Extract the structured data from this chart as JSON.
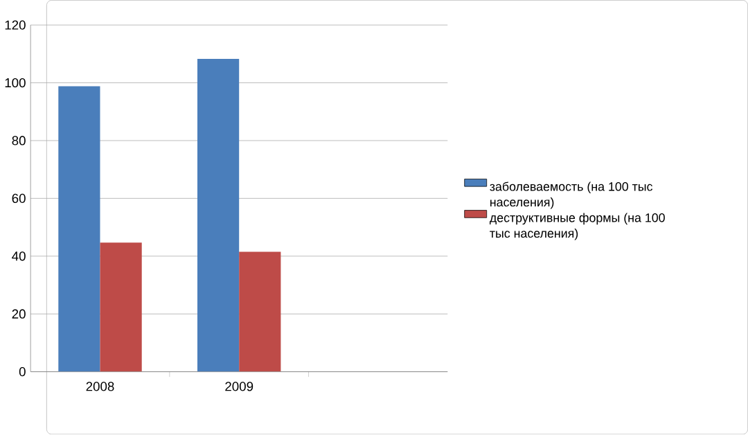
{
  "chart_data": {
    "type": "bar",
    "categories": [
      "2008",
      "2009",
      null
    ],
    "series": [
      {
        "name": "заболеваемость (на 100 тыс населения)",
        "color": "#4a7ebb",
        "values": [
          98.8,
          108.3,
          null
        ]
      },
      {
        "name": "деструктивные формы (на 100 тыс населения)",
        "color": "#be4b48",
        "values": [
          44.7,
          41.5,
          null
        ]
      }
    ],
    "ylim": [
      0,
      120
    ],
    "yticks": [
      0,
      20,
      40,
      60,
      80,
      100,
      120
    ],
    "grid": "y",
    "legend": "right"
  }
}
